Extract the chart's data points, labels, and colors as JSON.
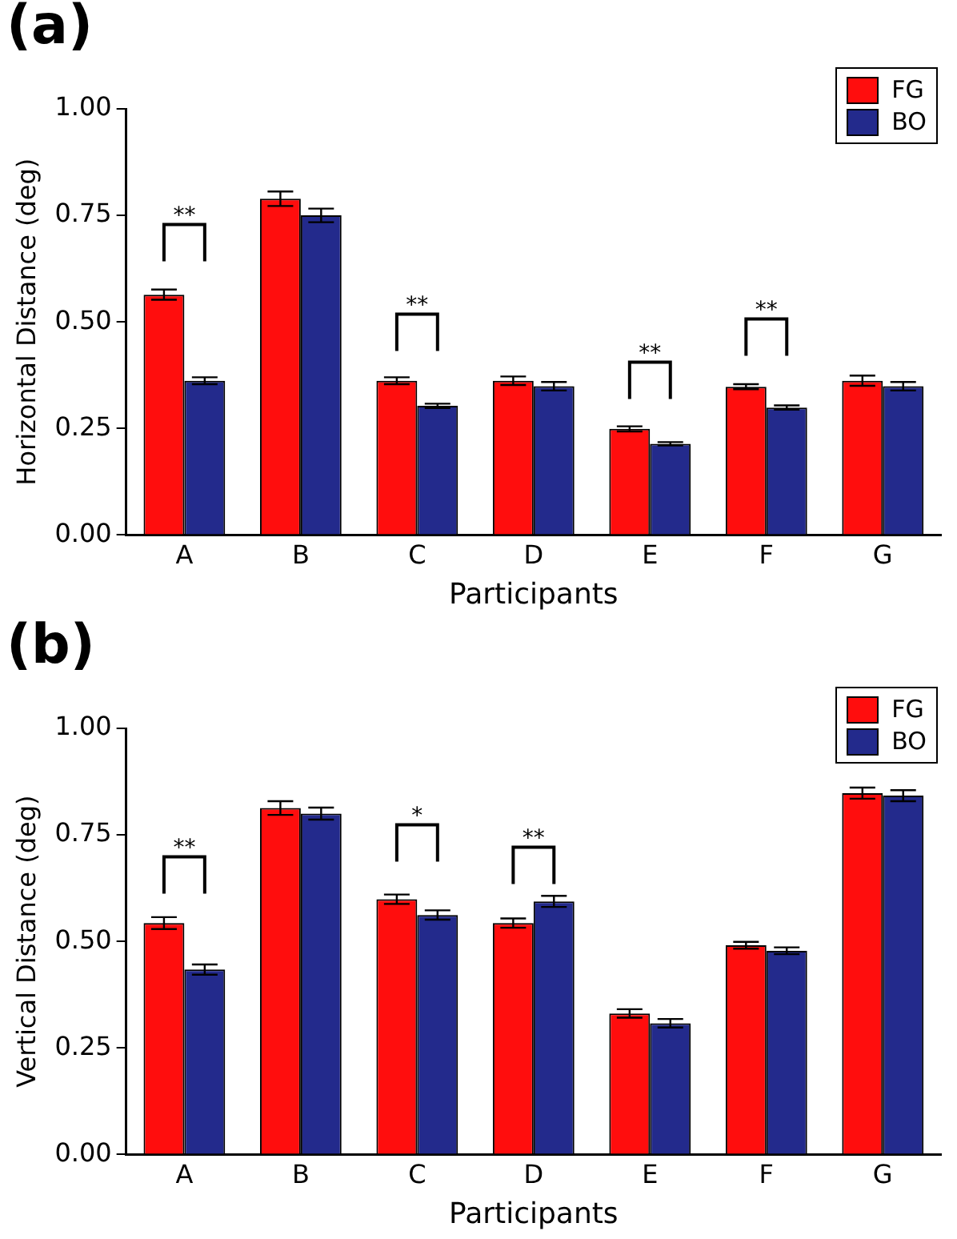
{
  "chart_data": [
    {
      "type": "bar",
      "title": "(a)",
      "xlabel": "Participants",
      "ylabel": "Horizontal Distance (deg)",
      "categories": [
        "A",
        "B",
        "C",
        "D",
        "E",
        "F",
        "G"
      ],
      "series": [
        {
          "name": "FG",
          "color": "#ff0d0d",
          "values": [
            0.564,
            0.789,
            0.362,
            0.362,
            0.249,
            0.348,
            0.362
          ],
          "errors": [
            0.012,
            0.017,
            0.008,
            0.01,
            0.006,
            0.006,
            0.012
          ]
        },
        {
          "name": "BO",
          "color": "#232a8c",
          "values": [
            0.362,
            0.75,
            0.303,
            0.349,
            0.214,
            0.299,
            0.349
          ],
          "errors": [
            0.008,
            0.016,
            0.005,
            0.01,
            0.004,
            0.005,
            0.01
          ]
        }
      ],
      "ylim": [
        0,
        1
      ],
      "yticks": [
        {
          "value": 0,
          "label": "0.00"
        },
        {
          "value": 0.25,
          "label": "0.25"
        },
        {
          "value": 0.5,
          "label": "0.50"
        },
        {
          "value": 0.75,
          "label": "0.75"
        },
        {
          "value": 1,
          "label": "1.00"
        }
      ],
      "legend": "top right",
      "annotations": [
        "**",
        "**",
        "**",
        "**"
      ]
    },
    {
      "type": "bar",
      "title": "(b)",
      "xlabel": "Participants",
      "ylabel": "Vertical Distance (deg)",
      "categories": [
        "A",
        "B",
        "C",
        "D",
        "E",
        "F",
        "G"
      ],
      "series": [
        {
          "name": "FG",
          "color": "#ff0d0d",
          "values": [
            0.543,
            0.813,
            0.599,
            0.543,
            0.331,
            0.491,
            0.848
          ],
          "errors": [
            0.014,
            0.016,
            0.011,
            0.011,
            0.01,
            0.008,
            0.013
          ]
        },
        {
          "name": "BO",
          "color": "#232a8c",
          "values": [
            0.434,
            0.8,
            0.562,
            0.594,
            0.308,
            0.478,
            0.842
          ],
          "errors": [
            0.012,
            0.014,
            0.011,
            0.013,
            0.01,
            0.008,
            0.013
          ]
        }
      ],
      "ylim": [
        0,
        1
      ],
      "yticks": [
        {
          "value": 0,
          "label": "0.00"
        },
        {
          "value": 0.25,
          "label": "0.25"
        },
        {
          "value": 0.5,
          "label": "0.50"
        },
        {
          "value": 0.75,
          "label": "0.75"
        },
        {
          "value": 1,
          "label": "1.00"
        }
      ],
      "legend": "top right",
      "annotations": [
        "**",
        "*",
        "**"
      ]
    }
  ]
}
